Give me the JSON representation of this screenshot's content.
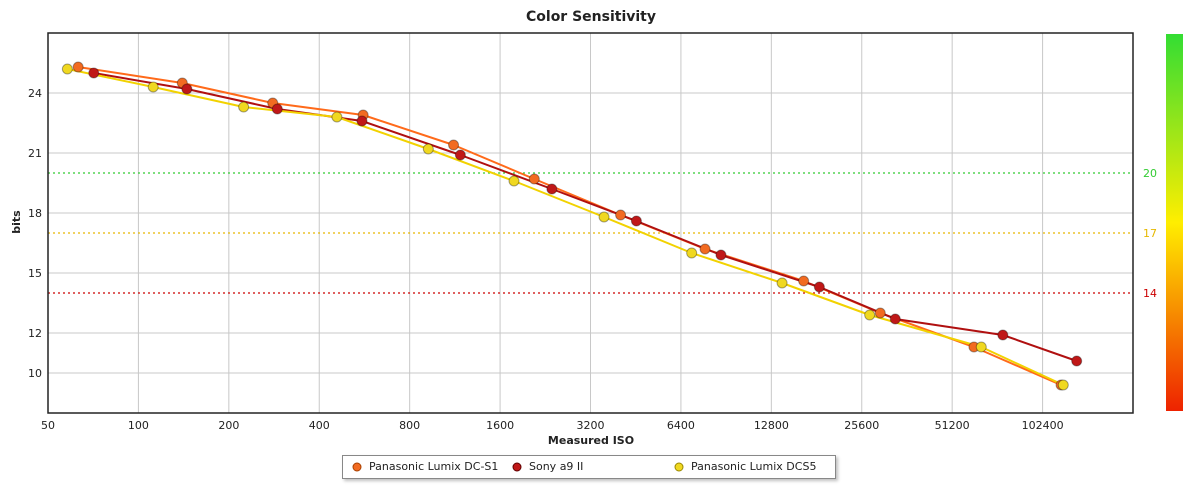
{
  "chart_data": {
    "type": "line",
    "title": "Color Sensitivity",
    "xlabel": "Measured ISO",
    "ylabel": "bits",
    "x_scale": "log2",
    "xlim": [
      50,
      204800
    ],
    "ylim": [
      8,
      27
    ],
    "x_ticks": [
      50,
      100,
      200,
      400,
      800,
      1600,
      3200,
      6400,
      12800,
      25600,
      51200,
      102400
    ],
    "x_tick_labels": [
      "50",
      "100",
      "200",
      "400",
      "800",
      "1600",
      "3200",
      "6400",
      "12800",
      "25600",
      "51200",
      "102400"
    ],
    "y_ticks": [
      10,
      12,
      15,
      18,
      21,
      24
    ],
    "y_tick_labels": [
      "10",
      "12",
      "15",
      "18",
      "21",
      "24"
    ],
    "grid": true,
    "reference_lines": [
      {
        "value": 20,
        "label": "20",
        "color": "#33cc33"
      },
      {
        "value": 17,
        "label": "17",
        "color": "#e6b800"
      },
      {
        "value": 14,
        "label": "14",
        "color": "#cc0000"
      }
    ],
    "colorbar": {
      "top_color": "#33dd33",
      "middle_color": "#ffee00",
      "bottom_color": "#ee2200"
    },
    "legend_position": "bottom-center",
    "series": [
      {
        "name": "Panasonic Lumix DC-S1",
        "color": "#ff6a1a",
        "marker_color": "#f26b21",
        "points": [
          [
            63,
            25.3
          ],
          [
            140,
            24.5
          ],
          [
            280,
            23.5
          ],
          [
            560,
            22.9
          ],
          [
            1120,
            21.4
          ],
          [
            2080,
            19.7
          ],
          [
            4030,
            17.9
          ],
          [
            7700,
            16.2
          ],
          [
            16400,
            14.6
          ],
          [
            29500,
            13.0
          ],
          [
            60500,
            11.3
          ],
          [
            118000,
            9.4
          ]
        ]
      },
      {
        "name": "Sony a9 II",
        "color": "#b01010",
        "marker_color": "#c01818",
        "points": [
          [
            71,
            25.0
          ],
          [
            145,
            24.2
          ],
          [
            290,
            23.2
          ],
          [
            555,
            22.6
          ],
          [
            1180,
            20.9
          ],
          [
            2380,
            19.2
          ],
          [
            4550,
            17.6
          ],
          [
            8700,
            15.9
          ],
          [
            18500,
            14.3
          ],
          [
            33100,
            12.7
          ],
          [
            75500,
            11.9
          ],
          [
            133000,
            10.6
          ]
        ]
      },
      {
        "name": "Panasonic Lumix DCS5",
        "color": "#f2d200",
        "marker_color": "#f0d820",
        "points": [
          [
            58,
            25.2
          ],
          [
            112,
            24.3
          ],
          [
            224,
            23.3
          ],
          [
            458,
            22.8
          ],
          [
            923,
            21.2
          ],
          [
            1780,
            19.6
          ],
          [
            3550,
            17.8
          ],
          [
            6950,
            16.0
          ],
          [
            13900,
            14.5
          ],
          [
            27200,
            12.9
          ],
          [
            64000,
            11.3
          ],
          [
            120000,
            9.4
          ]
        ]
      }
    ]
  }
}
